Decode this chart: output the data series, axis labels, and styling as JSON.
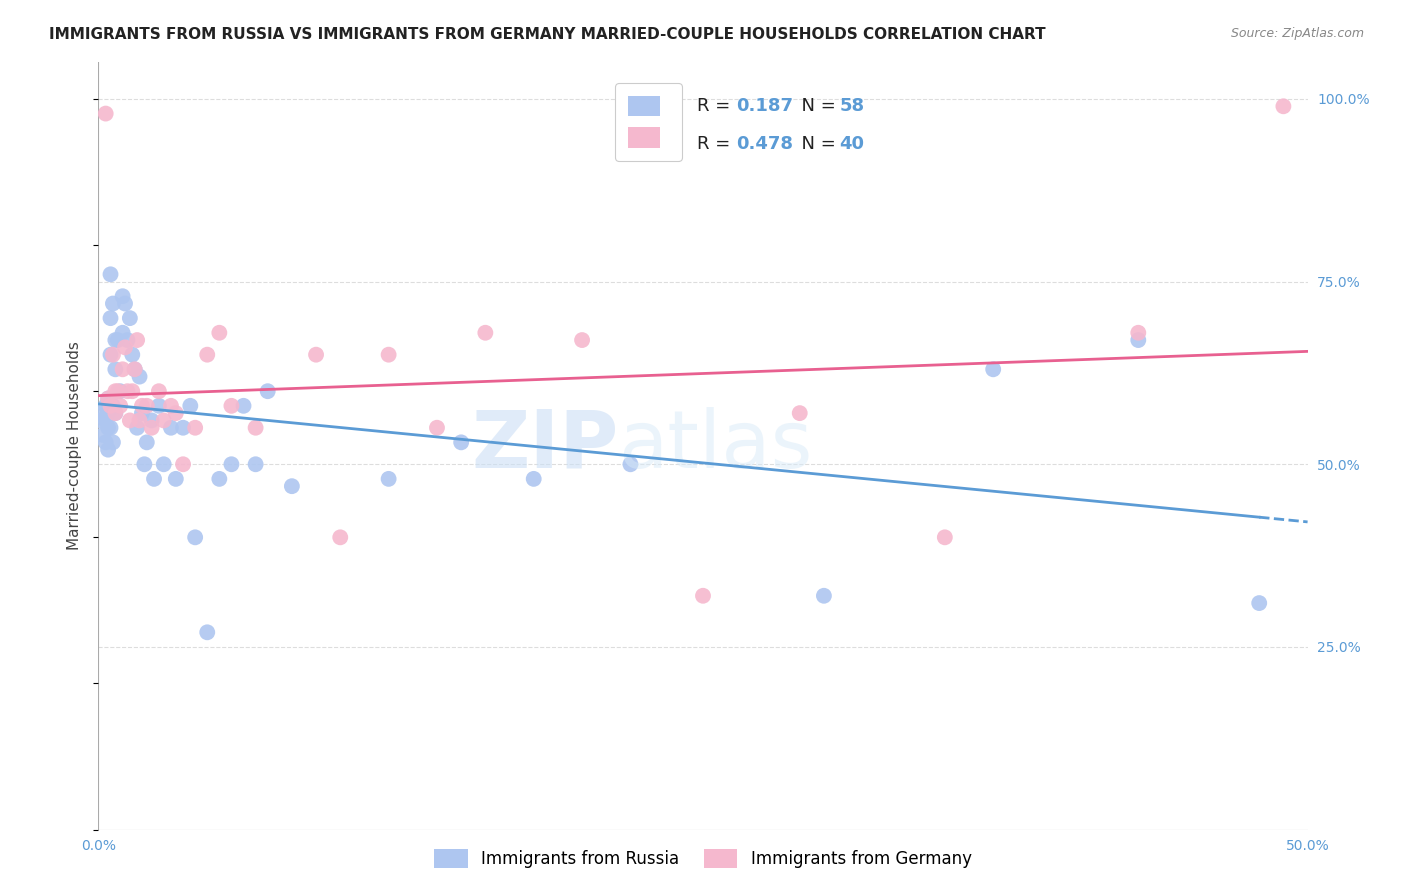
{
  "title": "IMMIGRANTS FROM RUSSIA VS IMMIGRANTS FROM GERMANY MARRIED-COUPLE HOUSEHOLDS CORRELATION CHART",
  "source": "Source: ZipAtlas.com",
  "xlabel": "",
  "ylabel": "Married-couple Households",
  "xlim": [
    0.0,
    0.5
  ],
  "ylim": [
    0.0,
    1.05
  ],
  "yticks": [
    0.0,
    0.25,
    0.5,
    0.75,
    1.0
  ],
  "ytick_labels": [
    "",
    "25.0%",
    "50.0%",
    "75.0%",
    "100.0%"
  ],
  "xticks": [
    0.0,
    0.05,
    0.1,
    0.15,
    0.2,
    0.25,
    0.3,
    0.35,
    0.4,
    0.45,
    0.5
  ],
  "xtick_labels": [
    "0.0%",
    "",
    "",
    "",
    "",
    "",
    "",
    "",
    "",
    "",
    "50.0%"
  ],
  "russia_color": "#aec6f0",
  "germany_color": "#f5b8ce",
  "russia_R": 0.187,
  "russia_N": 58,
  "germany_R": 0.478,
  "germany_N": 40,
  "russia_line_color": "#5b9bd5",
  "germany_line_color": "#e86090",
  "legend_label_russia": "Immigrants from Russia",
  "legend_label_germany": "Immigrants from Germany",
  "russia_x": [
    0.001,
    0.002,
    0.002,
    0.003,
    0.003,
    0.003,
    0.004,
    0.004,
    0.004,
    0.004,
    0.005,
    0.005,
    0.005,
    0.005,
    0.006,
    0.006,
    0.006,
    0.007,
    0.007,
    0.007,
    0.008,
    0.009,
    0.01,
    0.01,
    0.011,
    0.012,
    0.013,
    0.014,
    0.015,
    0.016,
    0.017,
    0.018,
    0.019,
    0.02,
    0.022,
    0.023,
    0.025,
    0.027,
    0.03,
    0.032,
    0.035,
    0.038,
    0.04,
    0.045,
    0.05,
    0.055,
    0.06,
    0.065,
    0.07,
    0.08,
    0.12,
    0.15,
    0.18,
    0.22,
    0.3,
    0.37,
    0.43,
    0.48
  ],
  "russia_y": [
    0.56,
    0.57,
    0.54,
    0.58,
    0.56,
    0.53,
    0.57,
    0.59,
    0.55,
    0.52,
    0.76,
    0.7,
    0.65,
    0.55,
    0.72,
    0.58,
    0.53,
    0.67,
    0.63,
    0.57,
    0.67,
    0.6,
    0.68,
    0.73,
    0.72,
    0.67,
    0.7,
    0.65,
    0.63,
    0.55,
    0.62,
    0.57,
    0.5,
    0.53,
    0.56,
    0.48,
    0.58,
    0.5,
    0.55,
    0.48,
    0.55,
    0.58,
    0.4,
    0.27,
    0.48,
    0.5,
    0.58,
    0.5,
    0.6,
    0.47,
    0.48,
    0.53,
    0.48,
    0.5,
    0.32,
    0.63,
    0.67,
    0.31
  ],
  "germany_x": [
    0.003,
    0.004,
    0.005,
    0.006,
    0.007,
    0.007,
    0.008,
    0.009,
    0.01,
    0.011,
    0.012,
    0.013,
    0.014,
    0.015,
    0.016,
    0.017,
    0.018,
    0.02,
    0.022,
    0.025,
    0.027,
    0.03,
    0.032,
    0.035,
    0.04,
    0.045,
    0.05,
    0.055,
    0.065,
    0.09,
    0.1,
    0.12,
    0.14,
    0.16,
    0.2,
    0.25,
    0.29,
    0.35,
    0.43,
    0.49
  ],
  "germany_y": [
    0.98,
    0.59,
    0.58,
    0.65,
    0.57,
    0.6,
    0.6,
    0.58,
    0.63,
    0.66,
    0.6,
    0.56,
    0.6,
    0.63,
    0.67,
    0.56,
    0.58,
    0.58,
    0.55,
    0.6,
    0.56,
    0.58,
    0.57,
    0.5,
    0.55,
    0.65,
    0.68,
    0.58,
    0.55,
    0.65,
    0.4,
    0.65,
    0.55,
    0.68,
    0.67,
    0.32,
    0.57,
    0.4,
    0.68,
    0.99
  ],
  "background_color": "#ffffff",
  "grid_color": "#dddddd",
  "watermark_text": "ZIPatlas",
  "watermark_color": "#ccdff5",
  "title_fontsize": 11,
  "axis_label_fontsize": 11,
  "tick_fontsize": 10,
  "legend_fontsize": 13,
  "right_ytick_color": "#5b9bd5"
}
